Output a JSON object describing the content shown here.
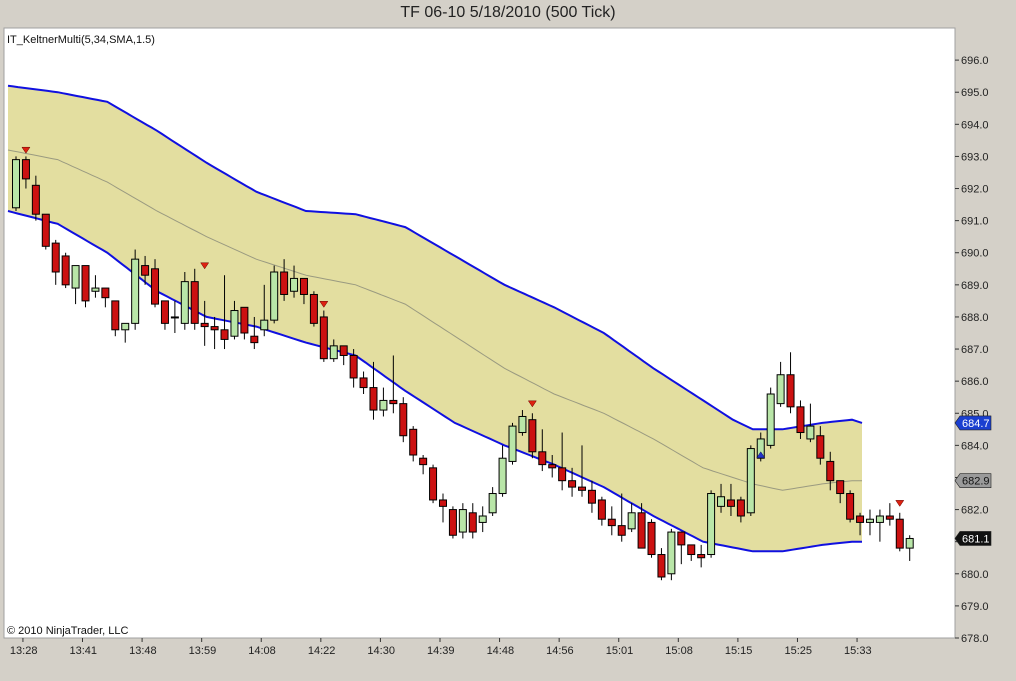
{
  "window": {
    "title": "TF 06-10  5/18/2010 (500 Tick)",
    "indicator_label": "IT_KeltnerMulti(5,34,SMA,1.5)",
    "copyright": "© 2010 NinjaTrader, LLC"
  },
  "colors": {
    "up_candle": "#b9e6a8",
    "down_candle": "#cc1111",
    "band_fill": "#e3dea0",
    "band_line": "#1010e0",
    "mid_line": "#9a9a80",
    "signal_marker": "#dd2211",
    "buy_marker": "#2233cc",
    "upper_badge": "#1a3fd0",
    "mid_badge": "#9a9a9a",
    "last_badge": "#111111"
  },
  "chart_data": {
    "type": "candlestick",
    "title": "TF 06-10  5/18/2010 (500 Tick)",
    "y_axis_ticks": [
      "678.0",
      "679.0",
      "680.0",
      "681.0",
      "682.0",
      "683.0",
      "684.0",
      "685.0",
      "686.0",
      "687.0",
      "688.0",
      "689.0",
      "690.0",
      "691.0",
      "692.0",
      "693.0",
      "694.0",
      "695.0",
      "696.0"
    ],
    "ylim": [
      678.0,
      697.0
    ],
    "x_axis_ticks": [
      {
        "label": "13:28",
        "bar": 1
      },
      {
        "label": "13:41",
        "bar": 7
      },
      {
        "label": "13:48",
        "bar": 13
      },
      {
        "label": "13:59",
        "bar": 19
      },
      {
        "label": "14:08",
        "bar": 25
      },
      {
        "label": "14:22",
        "bar": 31
      },
      {
        "label": "14:30",
        "bar": 37
      },
      {
        "label": "14:39",
        "bar": 43
      },
      {
        "label": "14:48",
        "bar": 49
      },
      {
        "label": "14:56",
        "bar": 55
      },
      {
        "label": "15:01",
        "bar": 61
      },
      {
        "label": "15:08",
        "bar": 67
      },
      {
        "label": "15:15",
        "bar": 73
      },
      {
        "label": "15:25",
        "bar": 79
      },
      {
        "label": "15:33",
        "bar": 85
      }
    ],
    "price_badges": {
      "upper_band": "684.7",
      "middle_band": "682.9",
      "last_price": "681.1"
    },
    "keltner": {
      "upper": [
        [
          0,
          695.2
        ],
        [
          5,
          695.0
        ],
        [
          10,
          694.7
        ],
        [
          15,
          693.8
        ],
        [
          20,
          692.8
        ],
        [
          25,
          691.9
        ],
        [
          30,
          691.3
        ],
        [
          35,
          691.2
        ],
        [
          40,
          690.8
        ],
        [
          45,
          689.9
        ],
        [
          50,
          689.0
        ],
        [
          55,
          688.3
        ],
        [
          60,
          687.5
        ],
        [
          65,
          686.4
        ],
        [
          70,
          685.4
        ],
        [
          73,
          684.8
        ],
        [
          75,
          684.5
        ],
        [
          78,
          684.5
        ],
        [
          82,
          684.7
        ],
        [
          85,
          684.8
        ],
        [
          86,
          684.7
        ]
      ],
      "middle": [
        [
          0,
          693.2
        ],
        [
          5,
          692.9
        ],
        [
          10,
          692.2
        ],
        [
          15,
          691.3
        ],
        [
          20,
          690.5
        ],
        [
          25,
          689.8
        ],
        [
          30,
          689.3
        ],
        [
          35,
          689.0
        ],
        [
          40,
          688.4
        ],
        [
          45,
          687.4
        ],
        [
          50,
          686.4
        ],
        [
          55,
          685.6
        ],
        [
          60,
          685.0
        ],
        [
          65,
          684.2
        ],
        [
          70,
          683.3
        ],
        [
          75,
          682.8
        ],
        [
          78,
          682.6
        ],
        [
          82,
          682.8
        ],
        [
          85,
          682.9
        ],
        [
          86,
          682.9
        ]
      ],
      "lower": [
        [
          0,
          691.3
        ],
        [
          5,
          690.9
        ],
        [
          10,
          690.0
        ],
        [
          15,
          688.8
        ],
        [
          20,
          688.0
        ],
        [
          25,
          687.7
        ],
        [
          30,
          687.2
        ],
        [
          35,
          686.8
        ],
        [
          40,
          685.7
        ],
        [
          45,
          684.7
        ],
        [
          50,
          684.0
        ],
        [
          55,
          683.4
        ],
        [
          60,
          682.7
        ],
        [
          65,
          681.8
        ],
        [
          70,
          681.0
        ],
        [
          75,
          680.7
        ],
        [
          78,
          680.7
        ],
        [
          82,
          680.9
        ],
        [
          85,
          681.0
        ],
        [
          86,
          681.0
        ]
      ]
    },
    "candles": [
      [
        691.4,
        692.9,
        691.3,
        693.0
      ],
      [
        692.9,
        692.3,
        692.0,
        693.0
      ],
      [
        692.1,
        691.2,
        691.0,
        692.4
      ],
      [
        691.2,
        690.2,
        690.1,
        691.2
      ],
      [
        690.3,
        689.4,
        689.0,
        690.4
      ],
      [
        689.9,
        689.0,
        688.9,
        690.0
      ],
      [
        688.9,
        689.6,
        688.4,
        689.6
      ],
      [
        689.6,
        688.5,
        688.3,
        689.6
      ],
      [
        688.8,
        688.9,
        688.6,
        689.3
      ],
      [
        688.9,
        688.6,
        688.3,
        688.9
      ],
      [
        688.5,
        687.6,
        687.4,
        688.5
      ],
      [
        687.6,
        687.8,
        687.2,
        687.8
      ],
      [
        687.8,
        689.8,
        687.6,
        690.1
      ],
      [
        689.6,
        689.3,
        689.0,
        689.9
      ],
      [
        689.5,
        688.4,
        688.3,
        689.8
      ],
      [
        688.5,
        687.8,
        687.6,
        688.5
      ],
      [
        688.0,
        688.0,
        687.5,
        688.5
      ],
      [
        687.8,
        689.1,
        687.6,
        689.4
      ],
      [
        689.1,
        687.8,
        687.6,
        689.5
      ],
      [
        687.8,
        687.7,
        687.1,
        688.5
      ],
      [
        687.7,
        687.6,
        687.0,
        688.0
      ],
      [
        687.6,
        687.3,
        687.0,
        689.3
      ],
      [
        687.4,
        688.2,
        687.3,
        688.5
      ],
      [
        688.3,
        687.5,
        687.3,
        688.3
      ],
      [
        687.4,
        687.2,
        687.0,
        688.0
      ],
      [
        687.6,
        687.9,
        687.4,
        689.0
      ],
      [
        687.9,
        689.4,
        687.8,
        689.6
      ],
      [
        689.4,
        688.7,
        688.5,
        689.8
      ],
      [
        688.8,
        689.2,
        688.6,
        689.6
      ],
      [
        689.2,
        688.7,
        688.4,
        689.2
      ],
      [
        688.7,
        687.8,
        687.7,
        688.8
      ],
      [
        688.0,
        686.7,
        686.6,
        688.2
      ],
      [
        686.7,
        687.1,
        686.6,
        687.3
      ],
      [
        687.1,
        686.8,
        686.5,
        687.1
      ],
      [
        686.8,
        686.1,
        685.8,
        687.0
      ],
      [
        686.1,
        685.8,
        685.6,
        686.3
      ],
      [
        685.8,
        685.1,
        684.8,
        686.6
      ],
      [
        685.1,
        685.4,
        684.9,
        685.8
      ],
      [
        685.4,
        685.3,
        685.0,
        686.8
      ],
      [
        685.3,
        684.3,
        684.1,
        685.5
      ],
      [
        684.5,
        683.7,
        683.5,
        684.6
      ],
      [
        683.6,
        683.4,
        683.1,
        683.7
      ],
      [
        683.3,
        682.3,
        682.2,
        683.4
      ],
      [
        682.3,
        682.1,
        681.6,
        682.5
      ],
      [
        682.0,
        681.2,
        681.1,
        682.1
      ],
      [
        681.3,
        682.0,
        681.1,
        682.2
      ],
      [
        681.9,
        681.3,
        681.1,
        682.2
      ],
      [
        681.6,
        681.8,
        681.3,
        682.1
      ],
      [
        681.9,
        682.5,
        681.8,
        682.7
      ],
      [
        682.5,
        683.6,
        682.4,
        684.0
      ],
      [
        683.5,
        684.6,
        683.4,
        684.7
      ],
      [
        684.4,
        684.9,
        684.3,
        685.1
      ],
      [
        684.8,
        683.8,
        683.6,
        685.0
      ],
      [
        683.8,
        683.4,
        683.2,
        684.5
      ],
      [
        683.4,
        683.3,
        683.0,
        683.7
      ],
      [
        683.3,
        682.9,
        682.6,
        684.4
      ],
      [
        682.9,
        682.7,
        682.4,
        683.3
      ],
      [
        682.7,
        682.6,
        682.4,
        684.0
      ],
      [
        682.6,
        682.2,
        681.9,
        682.9
      ],
      [
        682.3,
        681.7,
        681.5,
        682.4
      ],
      [
        681.7,
        681.5,
        681.2,
        682.1
      ],
      [
        681.5,
        681.2,
        681.0,
        682.5
      ],
      [
        681.4,
        681.9,
        681.3,
        682.2
      ],
      [
        681.9,
        680.8,
        680.8,
        682.2
      ],
      [
        681.6,
        680.6,
        680.5,
        681.7
      ],
      [
        680.6,
        679.9,
        679.8,
        680.8
      ],
      [
        680.0,
        681.3,
        679.8,
        681.4
      ],
      [
        681.3,
        680.9,
        680.3,
        681.3
      ],
      [
        680.9,
        680.6,
        680.4,
        680.9
      ],
      [
        680.6,
        680.5,
        680.2,
        680.9
      ],
      [
        680.6,
        682.5,
        680.5,
        682.6
      ],
      [
        682.1,
        682.4,
        681.9,
        682.8
      ],
      [
        682.3,
        682.1,
        681.8,
        682.8
      ],
      [
        682.3,
        681.8,
        681.6,
        682.4
      ],
      [
        681.9,
        683.9,
        681.8,
        684.0
      ],
      [
        683.6,
        684.2,
        683.5,
        684.4
      ],
      [
        684.0,
        685.6,
        683.9,
        685.8
      ],
      [
        685.3,
        686.2,
        685.2,
        686.6
      ],
      [
        686.2,
        685.2,
        685.0,
        686.9
      ],
      [
        685.2,
        684.4,
        684.2,
        685.4
      ],
      [
        684.2,
        684.6,
        684.1,
        685.3
      ],
      [
        684.3,
        683.6,
        683.4,
        684.6
      ],
      [
        683.5,
        682.9,
        682.6,
        683.8
      ],
      [
        682.9,
        682.5,
        682.2,
        682.9
      ],
      [
        682.5,
        681.7,
        681.6,
        682.6
      ],
      [
        681.8,
        681.6,
        681.2,
        681.9
      ],
      [
        681.6,
        681.7,
        681.2,
        682.0
      ],
      [
        681.6,
        681.8,
        681.0,
        682.0
      ],
      [
        681.8,
        681.7,
        681.5,
        682.2
      ],
      [
        681.7,
        680.8,
        680.7,
        681.9
      ],
      [
        680.8,
        681.1,
        680.4,
        681.2
      ]
    ],
    "signals": [
      {
        "bar": 1,
        "type": "down",
        "price": 693.1
      },
      {
        "bar": 19,
        "type": "down",
        "price": 689.5
      },
      {
        "bar": 31,
        "type": "down",
        "price": 688.3
      },
      {
        "bar": 52,
        "type": "down",
        "price": 685.2
      },
      {
        "bar": 75,
        "type": "up",
        "price": 683.8
      },
      {
        "bar": 89,
        "type": "down",
        "price": 682.1
      }
    ]
  }
}
